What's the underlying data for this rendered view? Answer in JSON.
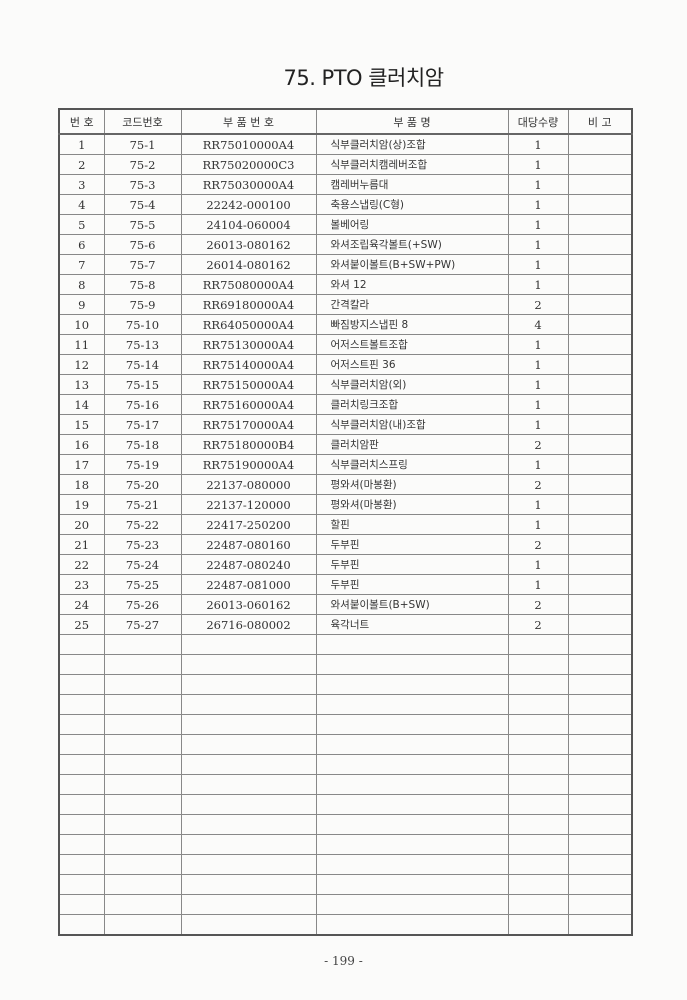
{
  "title": "75. PTO 클러치암",
  "headers": [
    "번  호",
    "코드번호",
    "부 품 번 호",
    "부     품     명",
    "대당수량",
    "비  고"
  ],
  "rows": [
    {
      "no": "1",
      "code": "75-1",
      "part": "RR75010000A4",
      "name": "식부클러치암(상)조합",
      "qty": "1",
      "note": ""
    },
    {
      "no": "2",
      "code": "75-2",
      "part": "RR75020000C3",
      "name": "식부클러치캠레버조합",
      "qty": "1",
      "note": ""
    },
    {
      "no": "3",
      "code": "75-3",
      "part": "RR75030000A4",
      "name": "캠레버누름대",
      "qty": "1",
      "note": ""
    },
    {
      "no": "4",
      "code": "75-4",
      "part": "22242-000100",
      "name": "축용스냅링(C형)",
      "qty": "1",
      "note": ""
    },
    {
      "no": "5",
      "code": "75-5",
      "part": "24104-060004",
      "name": "볼베어링",
      "qty": "1",
      "note": ""
    },
    {
      "no": "6",
      "code": "75-6",
      "part": "26013-080162",
      "name": "와셔조립육각볼트(+SW)",
      "qty": "1",
      "note": ""
    },
    {
      "no": "7",
      "code": "75-7",
      "part": "26014-080162",
      "name": "와셔붙이볼트(B+SW+PW)",
      "qty": "1",
      "note": ""
    },
    {
      "no": "8",
      "code": "75-8",
      "part": "RR75080000A4",
      "name": "와셔 12",
      "qty": "1",
      "note": ""
    },
    {
      "no": "9",
      "code": "75-9",
      "part": "RR69180000A4",
      "name": "간격칼라",
      "qty": "2",
      "note": ""
    },
    {
      "no": "10",
      "code": "75-10",
      "part": "RR64050000A4",
      "name": "빠짐방지스냅핀 8",
      "qty": "4",
      "note": ""
    },
    {
      "no": "11",
      "code": "75-13",
      "part": "RR75130000A4",
      "name": "어저스트볼트조합",
      "qty": "1",
      "note": ""
    },
    {
      "no": "12",
      "code": "75-14",
      "part": "RR75140000A4",
      "name": "어저스트핀 36",
      "qty": "1",
      "note": ""
    },
    {
      "no": "13",
      "code": "75-15",
      "part": "RR75150000A4",
      "name": "식부클러치암(외)",
      "qty": "1",
      "note": ""
    },
    {
      "no": "14",
      "code": "75-16",
      "part": "RR75160000A4",
      "name": "클러치링크조합",
      "qty": "1",
      "note": ""
    },
    {
      "no": "15",
      "code": "75-17",
      "part": "RR75170000A4",
      "name": "식부클러치암(내)조합",
      "qty": "1",
      "note": ""
    },
    {
      "no": "16",
      "code": "75-18",
      "part": "RR75180000B4",
      "name": "클러치암판",
      "qty": "2",
      "note": ""
    },
    {
      "no": "17",
      "code": "75-19",
      "part": "RR75190000A4",
      "name": "식부클러치스프링",
      "qty": "1",
      "note": ""
    },
    {
      "no": "18",
      "code": "75-20",
      "part": "22137-080000",
      "name": "평와셔(마봉환)",
      "qty": "2",
      "note": ""
    },
    {
      "no": "19",
      "code": "75-21",
      "part": "22137-120000",
      "name": "평와셔(마봉환)",
      "qty": "1",
      "note": ""
    },
    {
      "no": "20",
      "code": "75-22",
      "part": "22417-250200",
      "name": "할핀",
      "qty": "1",
      "note": ""
    },
    {
      "no": "21",
      "code": "75-23",
      "part": "22487-080160",
      "name": "두부핀",
      "qty": "2",
      "note": ""
    },
    {
      "no": "22",
      "code": "75-24",
      "part": "22487-080240",
      "name": "두부핀",
      "qty": "1",
      "note": ""
    },
    {
      "no": "23",
      "code": "75-25",
      "part": "22487-081000",
      "name": "두부핀",
      "qty": "1",
      "note": ""
    },
    {
      "no": "24",
      "code": "75-26",
      "part": "26013-060162",
      "name": "와셔붙이볼트(B+SW)",
      "qty": "2",
      "note": ""
    },
    {
      "no": "25",
      "code": "75-27",
      "part": "26716-080002",
      "name": "육각너트",
      "qty": "2",
      "note": ""
    }
  ],
  "page_number": "- 199 -"
}
